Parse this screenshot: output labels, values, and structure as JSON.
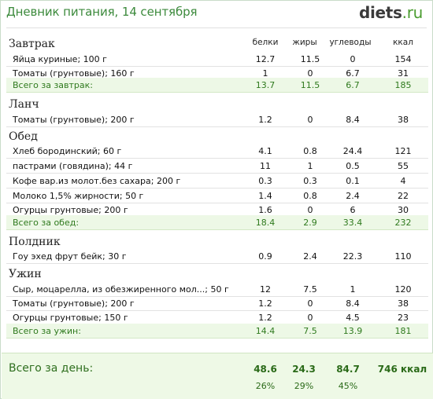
{
  "header": {
    "title": "Дневник питания, 14 сентября",
    "logo_main": "diets",
    "logo_tld": ".ru"
  },
  "columns": {
    "protein": "белки",
    "fat": "жиры",
    "carbs": "углеводы",
    "kcal": "ккал"
  },
  "meals": {
    "breakfast": {
      "title": "Завтрак",
      "items": [
        {
          "name": "Яйца куриные; 100 г",
          "protein": "12.7",
          "fat": "11.5",
          "carbs": "0",
          "kcal": "154"
        },
        {
          "name": "Томаты (грунтовые); 160 г",
          "protein": "1",
          "fat": "0",
          "carbs": "6.7",
          "kcal": "31"
        }
      ],
      "total": {
        "name": "Всего за завтрак:",
        "protein": "13.7",
        "fat": "11.5",
        "carbs": "6.7",
        "kcal": "185"
      }
    },
    "lunch": {
      "title": "Ланч",
      "items": [
        {
          "name": "Томаты (грунтовые); 200 г",
          "protein": "1.2",
          "fat": "0",
          "carbs": "8.4",
          "kcal": "38"
        }
      ]
    },
    "dinner_mid": {
      "title": "Обед",
      "items": [
        {
          "name": "Хлеб бородинский; 60 г",
          "protein": "4.1",
          "fat": "0.8",
          "carbs": "24.4",
          "kcal": "121"
        },
        {
          "name": "пастрами (говядина); 44 г",
          "protein": "11",
          "fat": "1",
          "carbs": "0.5",
          "kcal": "55"
        },
        {
          "name": "Кофе вар.из молот.без сахара; 200 г",
          "protein": "0.3",
          "fat": "0.3",
          "carbs": "0.1",
          "kcal": "4"
        },
        {
          "name": "Молоко 1,5% жирности; 50 г",
          "protein": "1.4",
          "fat": "0.8",
          "carbs": "2.4",
          "kcal": "22"
        },
        {
          "name": "Огурцы грунтовые; 200 г",
          "protein": "1.6",
          "fat": "0",
          "carbs": "6",
          "kcal": "30"
        }
      ],
      "total": {
        "name": "Всего за обед:",
        "protein": "18.4",
        "fat": "2.9",
        "carbs": "33.4",
        "kcal": "232"
      }
    },
    "snack": {
      "title": "Полдник",
      "items": [
        {
          "name": "Гоу эхед фрут бейк; 30 г",
          "protein": "0.9",
          "fat": "2.4",
          "carbs": "22.3",
          "kcal": "110"
        }
      ]
    },
    "supper": {
      "title": "Ужин",
      "items": [
        {
          "name": "Сыр, моцарелла, из обезжиренного мол...; 50 г",
          "protein": "12",
          "fat": "7.5",
          "carbs": "1",
          "kcal": "120"
        },
        {
          "name": "Томаты (грунтовые); 200 г",
          "protein": "1.2",
          "fat": "0",
          "carbs": "8.4",
          "kcal": "38"
        },
        {
          "name": "Огурцы грунтовые; 150 г",
          "protein": "1.2",
          "fat": "0",
          "carbs": "4.5",
          "kcal": "23"
        }
      ],
      "total": {
        "name": "Всего за ужин:",
        "protein": "14.4",
        "fat": "7.5",
        "carbs": "13.9",
        "kcal": "181"
      }
    }
  },
  "day_total": {
    "label": "Всего за день:",
    "protein": "48.6",
    "fat": "24.3",
    "carbs": "84.7",
    "kcal": "746 ккал",
    "protein_pct": "26%",
    "fat_pct": "29%",
    "carbs_pct": "45%"
  },
  "colors": {
    "accent_green": "#3c8a3c",
    "total_row_bg": "#edf8e6",
    "total_text": "#2f7a1e"
  }
}
